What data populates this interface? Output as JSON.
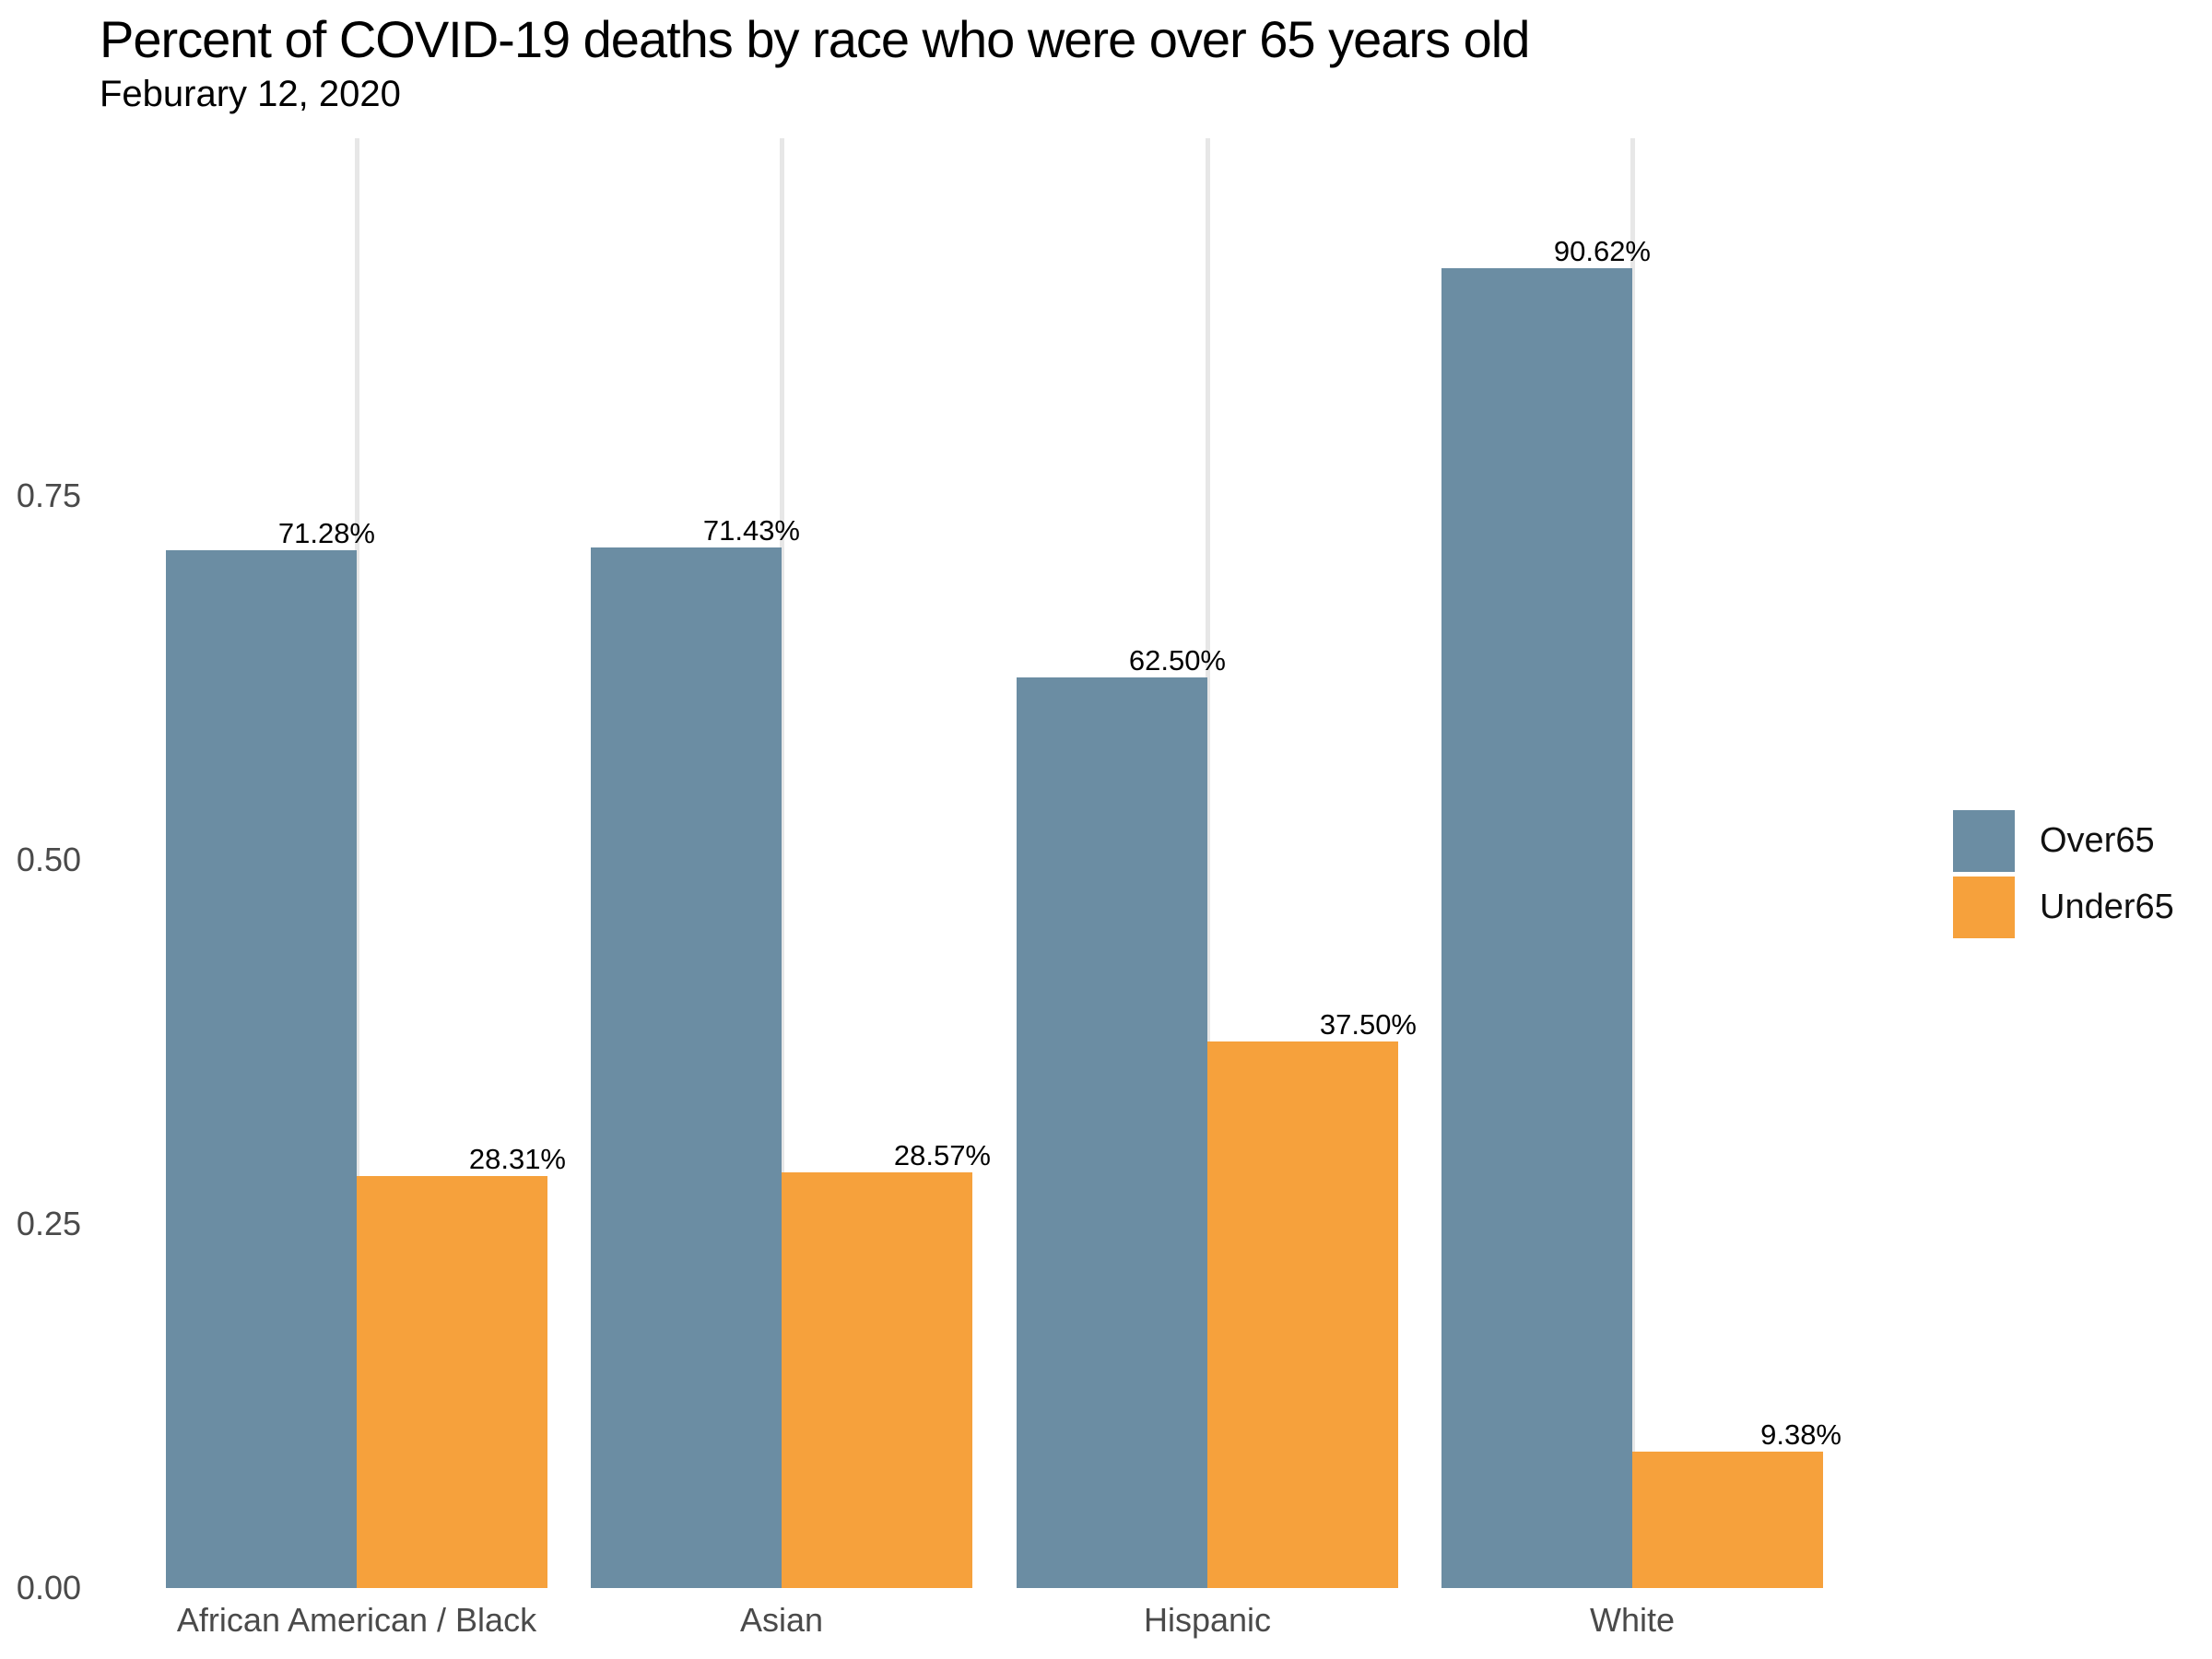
{
  "chart": {
    "title": "Percent of COVID-19 deaths by race who were over 65 years old",
    "subtitle": "Feburary 12, 2020"
  },
  "chart_data": {
    "type": "bar",
    "title": "Percent of COVID-19 deaths by race who were over 65 years old",
    "subtitle": "Feburary 12, 2020",
    "categories": [
      "African American / Black",
      "Asian",
      "Hispanic",
      "White"
    ],
    "series": [
      {
        "name": "Over65",
        "color": "#6b8da3",
        "values": [
          0.7128,
          0.7143,
          0.625,
          0.9062
        ],
        "display_labels": [
          "71.28%",
          "71.43%",
          "62.50%",
          "90.62%"
        ]
      },
      {
        "name": "Under65",
        "color": "#f6a13c",
        "values": [
          0.2831,
          0.2857,
          0.375,
          0.0938
        ],
        "display_labels": [
          "28.31%",
          "28.57%",
          "37.50%",
          "9.38%"
        ]
      }
    ],
    "y_ticks": [
      {
        "value": 0.0,
        "label": "0.00"
      },
      {
        "value": 0.25,
        "label": "0.25"
      },
      {
        "value": 0.5,
        "label": "0.50"
      },
      {
        "value": 0.75,
        "label": "0.75"
      }
    ],
    "ylim": [
      0,
      1.0
    ],
    "xlabel": "",
    "ylabel": "",
    "grid": "vertical-category-lines-only",
    "legend_position": "right"
  },
  "colors": {
    "background": "#ffffff",
    "over65": "#6b8da3",
    "under65": "#f6a13c",
    "gridline": "#e7e7e7",
    "axis_text": "#4a4a4a",
    "title_text": "#000000",
    "bar_label_text": "#000000"
  }
}
